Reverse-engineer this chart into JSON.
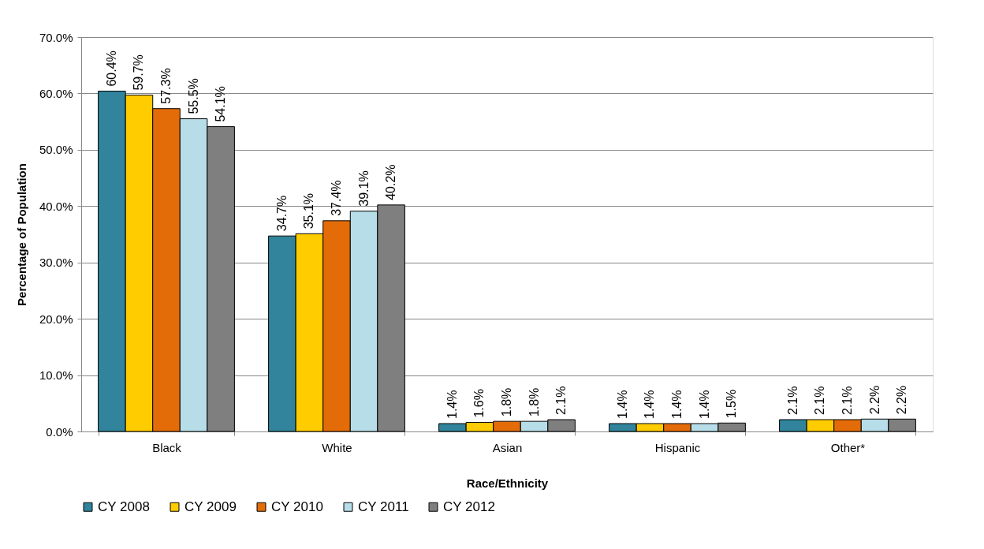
{
  "chart_data": {
    "type": "bar",
    "xlabel": "Race/Ethnicity",
    "ylabel": "Percentage of Population",
    "categories": [
      "Black",
      "White",
      "Asian",
      "Hispanic",
      "Other*"
    ],
    "series": [
      {
        "name": "CY 2008",
        "color": "#31849b",
        "values": [
          60.4,
          34.7,
          1.4,
          1.4,
          2.1
        ],
        "value_labels": [
          "60.4%",
          "34.7%",
          "1.4%",
          "1.4%",
          "2.1%"
        ]
      },
      {
        "name": "CY 2009",
        "color": "#ffcc00",
        "values": [
          59.7,
          35.1,
          1.6,
          1.4,
          2.1
        ],
        "value_labels": [
          "59.7%",
          "35.1%",
          "1.6%",
          "1.4%",
          "2.1%"
        ]
      },
      {
        "name": "CY 2010",
        "color": "#e36c09",
        "values": [
          57.3,
          37.4,
          1.8,
          1.4,
          2.1
        ],
        "value_labels": [
          "57.3%",
          "37.4%",
          "1.8%",
          "1.4%",
          "2.1%"
        ]
      },
      {
        "name": "CY 2011",
        "color": "#b7dde8",
        "values": [
          55.5,
          39.1,
          1.8,
          1.4,
          2.2
        ],
        "value_labels": [
          "55.5%",
          "39.1%",
          "1.8%",
          "1.4%",
          "2.2%"
        ]
      },
      {
        "name": "CY 2012",
        "color": "#7f7f7f",
        "values": [
          54.1,
          40.2,
          2.1,
          1.5,
          2.2
        ],
        "value_labels": [
          "54.1%",
          "40.2%",
          "2.1%",
          "1.5%",
          "2.2%"
        ]
      }
    ],
    "ylim": [
      0,
      70
    ],
    "yticks": [
      {
        "value": 0,
        "label": "0.0%"
      },
      {
        "value": 10,
        "label": "10.0%"
      },
      {
        "value": 20,
        "label": "20.0%"
      },
      {
        "value": 30,
        "label": "30.0%"
      },
      {
        "value": 40,
        "label": "40.0%"
      },
      {
        "value": 50,
        "label": "50.0%"
      },
      {
        "value": 60,
        "label": "60.0%"
      },
      {
        "value": 70,
        "label": "70.0%"
      }
    ],
    "grid": "y",
    "legend": "bottom"
  }
}
